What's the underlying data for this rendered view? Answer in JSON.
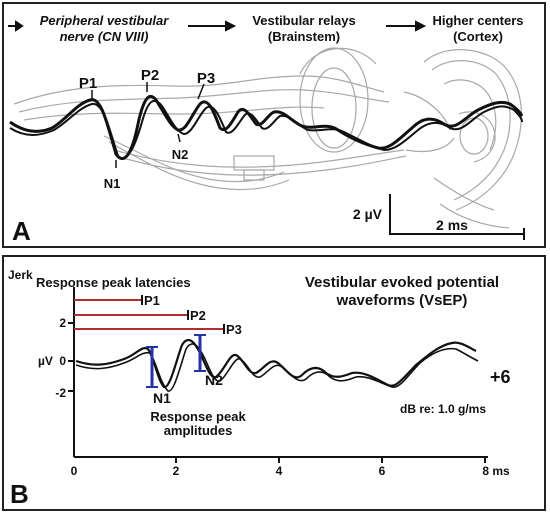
{
  "panel_a": {
    "letter": "A",
    "pathway": [
      {
        "line1": "Peripheral vestibular",
        "line2": "nerve (CN VIII)"
      },
      {
        "line1": "Vestibular relays",
        "line2": "(Brainstem)"
      },
      {
        "line1": "Higher centers",
        "line2": "(Cortex)"
      }
    ],
    "peaks": {
      "p1": "P1",
      "p2": "P2",
      "p3": "P3",
      "n1": "N1",
      "n2": "N2"
    },
    "scale_amplitude": "2 µV",
    "scale_time": "2 ms"
  },
  "panel_b": {
    "letter": "B",
    "jerk_label": "Jerk",
    "latency_title": "Response peak latencies",
    "title_line1": "Vestibular evoked potential",
    "title_line2": "waveforms (VsEP)",
    "latency_markers": [
      "P1",
      "P2",
      "P3"
    ],
    "trough_labels": [
      "N1",
      "N2"
    ],
    "amplitude_line1": "Response peak",
    "amplitude_line2": "amplitudes",
    "stimulus_level": "+6",
    "stimulus_units": "dB re: 1.0 g/ms",
    "y_unit": "µV",
    "y_ticks": [
      "2",
      "0",
      "-2"
    ],
    "x_ticks": [
      "0",
      "2",
      "4",
      "6",
      "8 ms"
    ],
    "colors": {
      "latency_lines": "#b03030",
      "amplitude_bars": "#2233aa",
      "trace": "#111111"
    }
  }
}
